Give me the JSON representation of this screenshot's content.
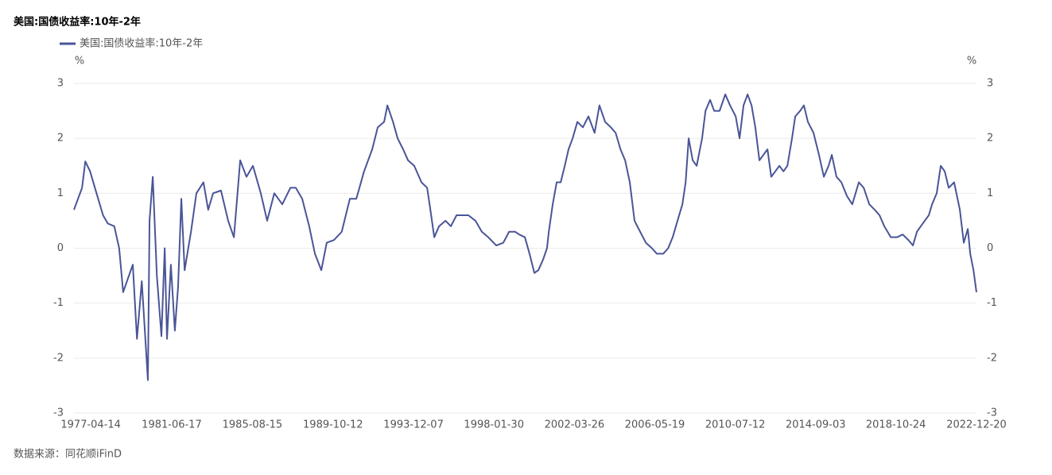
{
  "chart_data": {
    "type": "line",
    "title": "美国:国债收益率:10年-2年",
    "source": "数据来源：同花顺iFinD",
    "y_unit": "%",
    "y2_unit": "%",
    "xlim": [
      "1976-06-01",
      "2022-12-20"
    ],
    "xticks": [
      "1977-04-14",
      "1981-06-17",
      "1985-08-15",
      "1989-10-12",
      "1993-12-07",
      "1998-01-30",
      "2002-03-26",
      "2006-05-19",
      "2010-07-12",
      "2014-09-03",
      "2018-10-24",
      "2022-12-20"
    ],
    "ylim": [
      -3,
      3
    ],
    "yticks": [
      -3,
      -2,
      -1,
      0,
      1,
      2,
      3
    ],
    "y2lim": [
      -3,
      3
    ],
    "y2ticks": [
      -3,
      -2,
      -1,
      0,
      1,
      2,
      3
    ],
    "grid": true,
    "legend": "top-left",
    "x": [
      "1976-06-01",
      "1976-11-01",
      "1977-01-01",
      "1977-04-01",
      "1977-07-01",
      "1977-12-01",
      "1978-03-01",
      "1978-07-01",
      "1978-10-01",
      "1978-12-15",
      "1979-03-15",
      "1979-06-15",
      "1979-09-01",
      "1979-12-01",
      "1980-03-25",
      "1980-04-25",
      "1980-06-25",
      "1980-09-10",
      "1980-12-05",
      "1981-02-05",
      "1981-03-20",
      "1981-06-01",
      "1981-08-15",
      "1981-10-15",
      "1981-12-15",
      "1982-02-15",
      "1982-06-15",
      "1982-09-25",
      "1983-02-05",
      "1983-05-05",
      "1983-08-05",
      "1984-01-01",
      "1984-05-15",
      "1984-09-01",
      "1984-12-28",
      "1985-04-25",
      "1985-08-25",
      "1986-01-20",
      "1986-05-20",
      "1986-10-01",
      "1987-03-01",
      "1987-08-01",
      "1987-11-10",
      "1988-03-10",
      "1988-07-20",
      "1988-11-05",
      "1989-03-05",
      "1989-06-15",
      "1989-10-30",
      "1990-03-25",
      "1990-08-25",
      "1990-12-25",
      "1991-05-20",
      "1991-10-20",
      "1992-02-01",
      "1992-06-01",
      "1992-08-01",
      "1992-11-15",
      "1993-02-10",
      "1993-05-25",
      "1993-08-25",
      "1993-12-20",
      "1994-05-05",
      "1994-08-20",
      "1994-10-20",
      "1995-01-01",
      "1995-04-01",
      "1995-08-01",
      "1995-11-10",
      "1996-02-25",
      "1996-06-25",
      "1996-10-05",
      "1997-02-15",
      "1997-06-15",
      "1997-10-15",
      "1998-03-15",
      "1998-07-25",
      "1998-11-10",
      "1999-03-05",
      "1999-05-20",
      "1999-09-05",
      "1999-12-01",
      "2000-03-01",
      "2000-05-15",
      "2000-08-15",
      "2000-10-25",
      "2000-11-28",
      "2001-02-10",
      "2001-04-25",
      "2001-07-10",
      "2001-09-25",
      "2001-12-05",
      "2002-02-20",
      "2002-05-20",
      "2002-09-01",
      "2002-12-15",
      "2003-04-10",
      "2003-07-10",
      "2003-10-25",
      "2004-02-10",
      "2004-05-10",
      "2004-08-10",
      "2004-11-05",
      "2005-02-01",
      "2005-05-01",
      "2005-08-15",
      "2005-12-01",
      "2006-03-25",
      "2006-06-25",
      "2006-10-25",
      "2007-01-25",
      "2007-04-20",
      "2007-07-20",
      "2007-10-20",
      "2007-12-20",
      "2008-02-15",
      "2008-05-01",
      "2008-07-15",
      "2008-10-25",
      "2008-12-28",
      "2009-03-25",
      "2009-06-10",
      "2009-09-20",
      "2010-01-05",
      "2010-04-05",
      "2010-07-20",
      "2010-10-01",
      "2010-12-15",
      "2011-03-01",
      "2011-05-15",
      "2011-07-25",
      "2011-10-10",
      "2011-12-25",
      "2012-03-10",
      "2012-05-20",
      "2012-08-05",
      "2012-10-20",
      "2013-01-05",
      "2013-03-20",
      "2013-06-15",
      "2013-08-15",
      "2013-11-15",
      "2014-01-25",
      "2014-04-10",
      "2014-07-25",
      "2014-11-05",
      "2015-02-05",
      "2015-05-05",
      "2015-07-05",
      "2015-10-01",
      "2016-01-01",
      "2016-04-15",
      "2016-07-25",
      "2016-11-25",
      "2017-02-25",
      "2017-06-10",
      "2017-09-20",
      "2017-12-20",
      "2018-03-20",
      "2018-07-20",
      "2018-11-15",
      "2019-03-01",
      "2019-06-15",
      "2019-09-10",
      "2019-11-25",
      "2020-02-05",
      "2020-04-20",
      "2020-07-05",
      "2020-09-05",
      "2020-12-01",
      "2021-02-15",
      "2021-05-01",
      "2021-07-15",
      "2021-10-25",
      "2022-02-10",
      "2022-04-25",
      "2022-07-10",
      "2022-08-25",
      "2022-10-25",
      "2022-12-20"
    ],
    "series": [
      {
        "name": "美国:国债收益率:10年-2年",
        "color": "#4a5597",
        "values": [
          0.7,
          1.1,
          1.58,
          1.4,
          1.1,
          0.6,
          0.45,
          0.4,
          0.0,
          -0.8,
          -0.55,
          -0.3,
          -1.65,
          -0.6,
          -2.4,
          0.5,
          1.3,
          -0.5,
          -1.6,
          0.0,
          -1.65,
          -0.3,
          -1.5,
          -0.7,
          0.9,
          -0.4,
          0.3,
          1.0,
          1.2,
          0.7,
          1.0,
          1.05,
          0.5,
          0.2,
          1.6,
          1.3,
          1.5,
          1.0,
          0.5,
          1.0,
          0.8,
          1.1,
          1.1,
          0.9,
          0.4,
          -0.1,
          -0.4,
          0.1,
          0.15,
          0.3,
          0.9,
          0.9,
          1.4,
          1.8,
          2.2,
          2.3,
          2.6,
          2.3,
          2.0,
          1.8,
          1.6,
          1.5,
          1.2,
          1.1,
          0.7,
          0.2,
          0.4,
          0.5,
          0.4,
          0.6,
          0.6,
          0.6,
          0.5,
          0.3,
          0.2,
          0.05,
          0.1,
          0.3,
          0.3,
          0.25,
          0.2,
          -0.1,
          -0.45,
          -0.4,
          -0.2,
          0.0,
          0.3,
          0.8,
          1.2,
          1.2,
          1.5,
          1.8,
          2.0,
          2.3,
          2.2,
          2.4,
          2.1,
          2.6,
          2.3,
          2.2,
          2.1,
          1.8,
          1.6,
          1.2,
          0.5,
          0.3,
          0.1,
          0.0,
          -0.1,
          -0.1,
          0.0,
          0.2,
          0.5,
          0.8,
          1.2,
          2.0,
          1.6,
          1.5,
          2.0,
          2.5,
          2.7,
          2.5,
          2.5,
          2.8,
          2.6,
          2.4,
          2.0,
          2.6,
          2.8,
          2.6,
          2.2,
          1.6,
          1.7,
          1.8,
          1.3,
          1.4,
          1.5,
          1.4,
          1.5,
          2.0,
          2.4,
          2.5,
          2.6,
          2.3,
          2.1,
          1.7,
          1.3,
          1.5,
          1.7,
          1.3,
          1.2,
          0.95,
          0.8,
          1.2,
          1.1,
          0.8,
          0.7,
          0.6,
          0.4,
          0.2,
          0.2,
          0.25,
          0.15,
          0.05,
          0.3,
          0.4,
          0.5,
          0.6,
          0.8,
          1.0,
          1.5,
          1.4,
          1.1,
          1.2,
          0.7,
          0.1,
          0.35,
          -0.1,
          -0.4,
          -0.8
        ]
      }
    ]
  }
}
